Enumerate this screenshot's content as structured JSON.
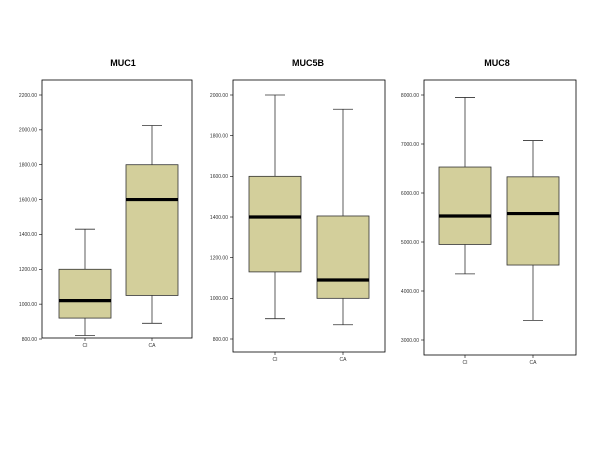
{
  "colors": {
    "box_fill": "#d3cf9b",
    "box_stroke": "#333333",
    "median": "#000000",
    "frame": "#000000"
  },
  "chart_data": [
    {
      "type": "box",
      "title": "MUC1",
      "categories": [
        "CI",
        "CA"
      ],
      "ylim": [
        750,
        2300
      ],
      "yticks": [
        800,
        1000,
        1200,
        1400,
        1600,
        1800,
        2000,
        2200
      ],
      "ytick_labels": [
        "800.00",
        "1000.00",
        "1200.00",
        "1400.00",
        "1600.00",
        "1800.00",
        "2000.00",
        "2200.00"
      ],
      "boxes": [
        {
          "category": "CI",
          "min": 820,
          "q1": 920,
          "median": 1020,
          "q3": 1200,
          "max": 1430
        },
        {
          "category": "CA",
          "min": 890,
          "q1": 1050,
          "median": 1600,
          "q3": 1800,
          "max": 2025
        }
      ]
    },
    {
      "type": "box",
      "title": "MUC5B",
      "categories": [
        "CI",
        "CA"
      ],
      "ylim": [
        750,
        2100
      ],
      "yticks": [
        800,
        1000,
        1200,
        1400,
        1600,
        1800,
        2000
      ],
      "ytick_labels": [
        "800.00",
        "1000.00",
        "1200.00",
        "1400.00",
        "1600.00",
        "1800.00",
        "2000.00"
      ],
      "boxes": [
        {
          "category": "CI",
          "min": 900,
          "q1": 1130,
          "median": 1400,
          "q3": 1600,
          "max": 2000
        },
        {
          "category": "CA",
          "min": 870,
          "q1": 1000,
          "median": 1090,
          "q3": 1405,
          "max": 1930
        }
      ]
    },
    {
      "type": "box",
      "title": "MUC8",
      "categories": [
        "CI",
        "CA"
      ],
      "ylim": [
        2700,
        8200
      ],
      "yticks": [
        3000,
        4000,
        5000,
        6000,
        7000,
        8000
      ],
      "ytick_labels": [
        "3000.00",
        "4000.00",
        "5000.00",
        "6000.00",
        "7000.00",
        "8000.00"
      ],
      "boxes": [
        {
          "category": "CI",
          "min": 4350,
          "q1": 4950,
          "median": 5530,
          "q3": 6530,
          "max": 7950
        },
        {
          "category": "CA",
          "min": 3400,
          "q1": 4530,
          "median": 5580,
          "q3": 6330,
          "max": 7070
        }
      ]
    }
  ]
}
